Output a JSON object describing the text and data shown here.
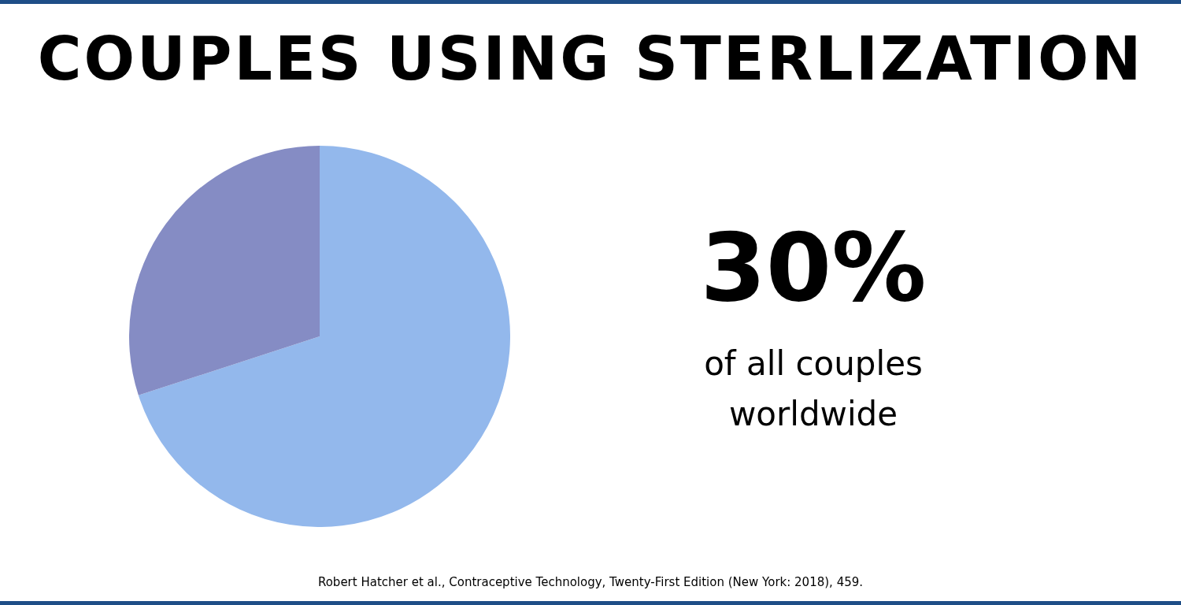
{
  "chart_data": {
    "type": "pie",
    "title": "COUPLES USING STERLIZATION",
    "categories": [
      null,
      null
    ],
    "values": [
      70,
      30
    ],
    "colors": [
      "#93b8ec",
      "#858cc4"
    ],
    "annotations": [
      "30%",
      "of all couples worldwide",
      "Robert Hatcher et al., Contraceptive Technology, Twenty-First Edition (New York: 2018), 459."
    ]
  }
}
